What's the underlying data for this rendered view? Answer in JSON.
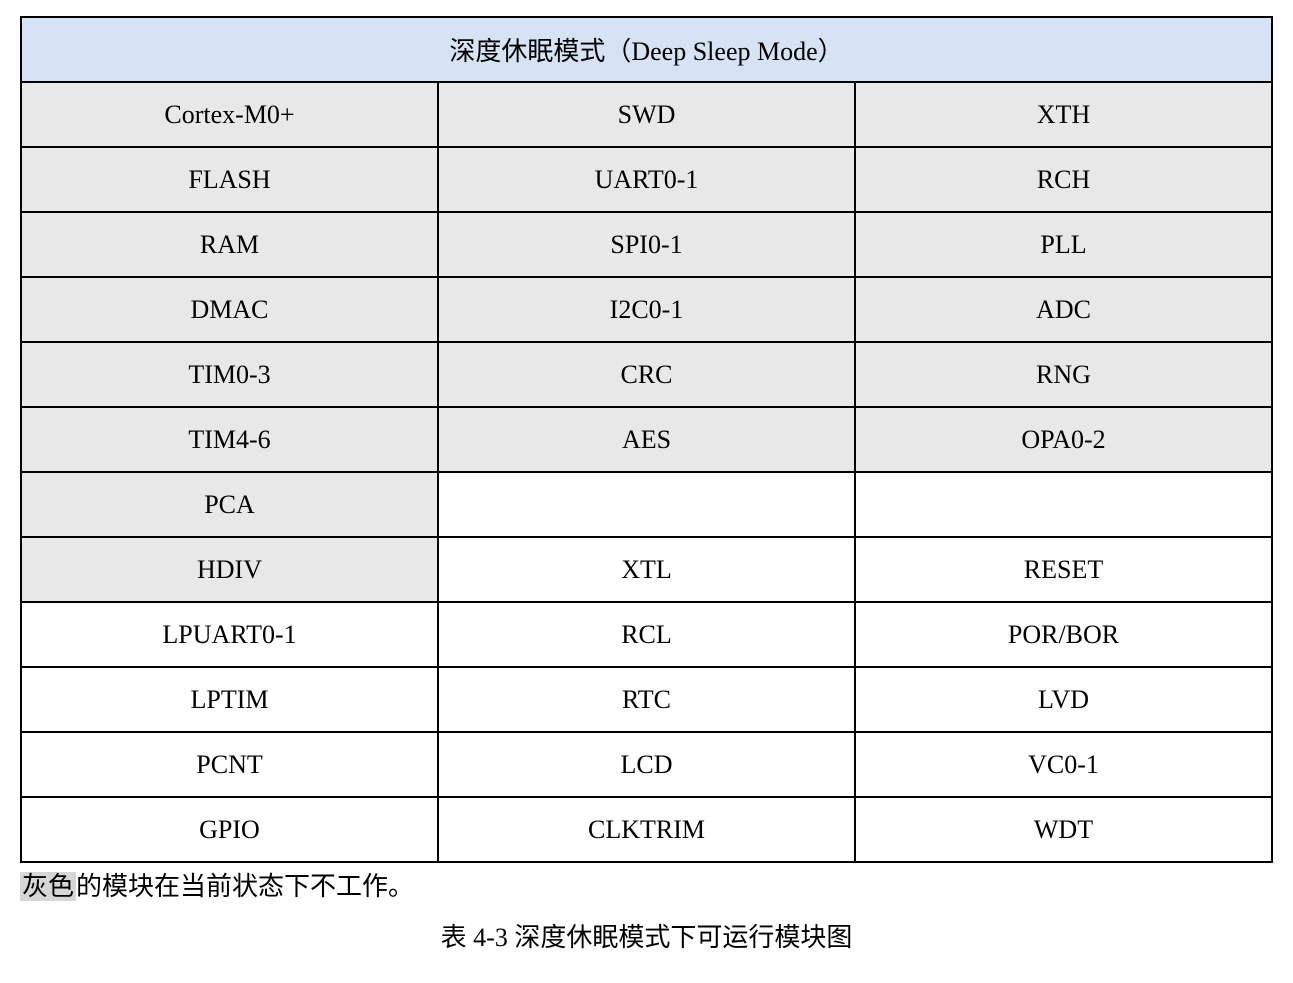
{
  "table": {
    "header": "深度休眠模式（Deep Sleep Mode）",
    "columns": 3,
    "header_bg": "#d6e3f4",
    "gray_bg": "#e8e8e8",
    "white_bg": "#ffffff",
    "border_color": "#000000",
    "cell_fontsize": 26,
    "header_fontsize": 28,
    "cells": [
      {
        "text": "Cortex-M0+",
        "bg": "gray"
      },
      {
        "text": "SWD",
        "bg": "gray"
      },
      {
        "text": "XTH",
        "bg": "gray"
      },
      {
        "text": "FLASH",
        "bg": "gray"
      },
      {
        "text": "UART0-1",
        "bg": "gray"
      },
      {
        "text": "RCH",
        "bg": "gray"
      },
      {
        "text": "RAM",
        "bg": "gray"
      },
      {
        "text": "SPI0-1",
        "bg": "gray"
      },
      {
        "text": "PLL",
        "bg": "gray"
      },
      {
        "text": "DMAC",
        "bg": "gray"
      },
      {
        "text": "I2C0-1",
        "bg": "gray"
      },
      {
        "text": "ADC",
        "bg": "gray"
      },
      {
        "text": "TIM0-3",
        "bg": "gray"
      },
      {
        "text": "CRC",
        "bg": "gray"
      },
      {
        "text": "RNG",
        "bg": "gray"
      },
      {
        "text": "TIM4-6",
        "bg": "gray"
      },
      {
        "text": "AES",
        "bg": "gray"
      },
      {
        "text": "OPA0-2",
        "bg": "gray"
      },
      {
        "text": "PCA",
        "bg": "gray"
      },
      {
        "text": "",
        "bg": "white"
      },
      {
        "text": "",
        "bg": "white"
      },
      {
        "text": "HDIV",
        "bg": "gray"
      },
      {
        "text": "XTL",
        "bg": "white"
      },
      {
        "text": "RESET",
        "bg": "white"
      },
      {
        "text": "LPUART0-1",
        "bg": "white"
      },
      {
        "text": "RCL",
        "bg": "white"
      },
      {
        "text": "POR/BOR",
        "bg": "white"
      },
      {
        "text": "LPTIM",
        "bg": "white"
      },
      {
        "text": "RTC",
        "bg": "white"
      },
      {
        "text": "LVD",
        "bg": "white"
      },
      {
        "text": "PCNT",
        "bg": "white"
      },
      {
        "text": "LCD",
        "bg": "white"
      },
      {
        "text": "VC0-1",
        "bg": "white"
      },
      {
        "text": "GPIO",
        "bg": "white"
      },
      {
        "text": "CLKTRIM",
        "bg": "white"
      },
      {
        "text": "WDT",
        "bg": "white"
      }
    ]
  },
  "note": {
    "highlight": "灰色",
    "rest": "的模块在当前状态下不工作。"
  },
  "caption": "表 4-3   深度休眠模式下可运行模块图"
}
